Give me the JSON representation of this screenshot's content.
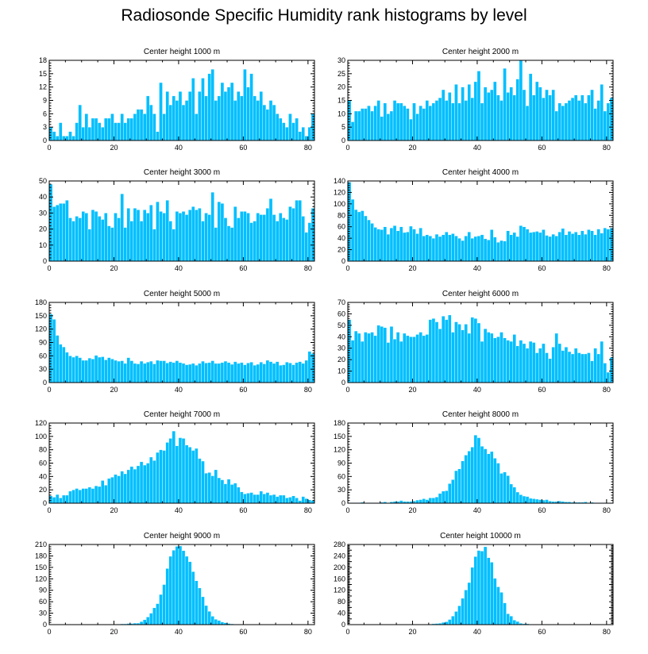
{
  "figure": {
    "title": "Radiosonde Specific Humidity rank histograms by level",
    "bar_color": "#00bfff",
    "bar_edge_color": "#ffffff"
  },
  "chart_data": [
    {
      "type": "bar",
      "title": "Center height 1000 m",
      "xlim": [
        0,
        82
      ],
      "ylim": [
        0,
        18
      ],
      "xticks": [
        0,
        20,
        40,
        60,
        80
      ],
      "yticks": [
        0,
        3,
        6,
        9,
        12,
        15,
        18
      ],
      "categories_start": 0,
      "values": [
        3,
        2,
        1,
        4,
        1,
        1,
        2,
        1,
        4,
        8,
        3,
        6,
        3,
        5,
        5,
        4,
        3,
        5,
        5,
        6,
        4,
        4,
        6,
        4,
        5,
        5,
        6,
        7,
        7,
        6,
        10,
        8,
        6,
        2,
        13,
        6,
        11,
        8,
        10,
        9,
        11,
        8,
        9,
        11,
        14,
        6,
        11,
        14,
        10,
        15,
        16,
        9,
        10,
        13,
        11,
        12,
        13,
        9,
        11,
        10,
        16,
        12,
        15,
        10,
        9,
        11,
        8,
        7,
        9,
        8,
        6,
        5,
        4,
        3,
        6,
        4,
        5,
        2,
        3,
        1,
        3,
        6
      ]
    },
    {
      "type": "bar",
      "title": "Center height 2000 m",
      "xlim": [
        0,
        82
      ],
      "ylim": [
        0,
        30
      ],
      "xticks": [
        0,
        20,
        40,
        60,
        80
      ],
      "yticks": [
        0,
        5,
        10,
        15,
        20,
        25,
        30
      ],
      "categories_start": 0,
      "values": [
        15,
        7,
        11,
        11,
        12,
        12,
        13,
        11,
        13,
        15,
        9,
        14,
        10,
        11,
        15,
        14,
        14,
        13,
        12,
        8,
        14,
        10,
        13,
        12,
        15,
        13,
        14,
        15,
        16,
        19,
        15,
        18,
        14,
        21,
        14,
        20,
        15,
        21,
        16,
        22,
        26,
        14,
        20,
        18,
        19,
        22,
        17,
        15,
        27,
        18,
        20,
        17,
        23,
        30,
        19,
        13,
        25,
        17,
        22,
        20,
        16,
        19,
        17,
        19,
        11,
        14,
        13,
        14,
        15,
        16,
        17,
        15,
        17,
        14,
        17,
        19,
        12,
        15,
        21,
        11,
        14,
        16
      ]
    },
    {
      "type": "bar",
      "title": "Center height 3000 m",
      "xlim": [
        0,
        82
      ],
      "ylim": [
        0,
        50
      ],
      "xticks": [
        0,
        20,
        40,
        60,
        80
      ],
      "yticks": [
        0,
        10,
        20,
        30,
        40,
        50
      ],
      "categories_start": 0,
      "values": [
        48,
        34,
        35,
        36,
        36,
        38,
        27,
        25,
        28,
        27,
        31,
        30,
        20,
        32,
        31,
        28,
        26,
        30,
        22,
        21,
        30,
        27,
        42,
        21,
        33,
        25,
        33,
        32,
        25,
        32,
        30,
        35,
        20,
        37,
        31,
        30,
        38,
        25,
        20,
        31,
        30,
        31,
        29,
        32,
        34,
        32,
        33,
        25,
        30,
        29,
        43,
        21,
        37,
        36,
        27,
        22,
        21,
        34,
        27,
        31,
        31,
        30,
        24,
        25,
        30,
        29,
        29,
        33,
        39,
        29,
        25,
        30,
        27,
        26,
        34,
        33,
        38,
        38,
        28,
        18,
        24,
        33
      ]
    },
    {
      "type": "bar",
      "title": "Center height 4000 m",
      "xlim": [
        0,
        82
      ],
      "ylim": [
        0,
        140
      ],
      "xticks": [
        0,
        20,
        40,
        60,
        80
      ],
      "yticks": [
        0,
        20,
        40,
        60,
        80,
        100,
        120,
        140
      ],
      "categories_start": 0,
      "values": [
        138,
        108,
        90,
        86,
        88,
        79,
        72,
        66,
        59,
        56,
        55,
        60,
        47,
        58,
        62,
        53,
        60,
        50,
        51,
        61,
        56,
        48,
        58,
        44,
        46,
        44,
        40,
        47,
        43,
        46,
        51,
        46,
        48,
        44,
        40,
        36,
        44,
        51,
        40,
        43,
        44,
        46,
        39,
        37,
        55,
        42,
        33,
        36,
        35,
        53,
        46,
        50,
        43,
        62,
        60,
        56,
        50,
        51,
        52,
        50,
        55,
        45,
        43,
        47,
        44,
        51,
        57,
        46,
        52,
        48,
        51,
        46,
        53,
        47,
        55,
        53,
        46,
        56,
        49,
        58,
        56,
        58
      ]
    },
    {
      "type": "bar",
      "title": "Center height 5000 m",
      "xlim": [
        0,
        82
      ],
      "ylim": [
        0,
        180
      ],
      "xticks": [
        0,
        20,
        40,
        60,
        80
      ],
      "yticks": [
        0,
        30,
        60,
        90,
        120,
        150,
        180
      ],
      "categories_start": 0,
      "values": [
        154,
        142,
        106,
        86,
        80,
        68,
        60,
        57,
        60,
        56,
        50,
        50,
        55,
        53,
        61,
        57,
        58,
        51,
        56,
        53,
        50,
        48,
        49,
        43,
        56,
        49,
        43,
        42,
        48,
        43,
        46,
        48,
        42,
        50,
        49,
        49,
        44,
        47,
        45,
        49,
        45,
        43,
        40,
        41,
        43,
        39,
        43,
        48,
        44,
        45,
        49,
        43,
        43,
        45,
        48,
        45,
        41,
        47,
        43,
        45,
        40,
        44,
        46,
        39,
        41,
        46,
        42,
        50,
        47,
        43,
        47,
        39,
        40,
        46,
        44,
        40,
        45,
        47,
        43,
        50,
        70,
        65
      ]
    },
    {
      "type": "bar",
      "title": "Center height 6000 m",
      "xlim": [
        0,
        82
      ],
      "ylim": [
        0,
        70
      ],
      "xticks": [
        0,
        20,
        40,
        60,
        80
      ],
      "yticks": [
        0,
        10,
        20,
        30,
        40,
        50,
        60,
        70
      ],
      "categories_start": 0,
      "values": [
        55,
        37,
        45,
        43,
        36,
        44,
        43,
        44,
        41,
        50,
        49,
        48,
        35,
        49,
        38,
        44,
        36,
        43,
        41,
        40,
        40,
        42,
        44,
        41,
        42,
        55,
        56,
        53,
        47,
        58,
        55,
        59,
        44,
        53,
        51,
        46,
        51,
        43,
        57,
        56,
        52,
        36,
        47,
        44,
        43,
        39,
        40,
        44,
        39,
        37,
        36,
        42,
        32,
        37,
        34,
        30,
        36,
        35,
        26,
        30,
        34,
        26,
        21,
        31,
        43,
        34,
        28,
        31,
        27,
        25,
        30,
        26,
        25,
        25,
        26,
        19,
        30,
        25,
        36,
        17,
        9,
        22
      ]
    },
    {
      "type": "bar",
      "title": "Center height 7000 m",
      "xlim": [
        0,
        82
      ],
      "ylim": [
        0,
        120
      ],
      "xticks": [
        0,
        20,
        40,
        60,
        80
      ],
      "yticks": [
        0,
        20,
        40,
        60,
        80,
        100,
        120
      ],
      "categories_start": 0,
      "values": [
        11,
        9,
        13,
        8,
        12,
        12,
        18,
        20,
        22,
        20,
        22,
        22,
        24,
        22,
        26,
        25,
        34,
        27,
        37,
        39,
        43,
        41,
        48,
        44,
        50,
        55,
        51,
        56,
        62,
        57,
        60,
        69,
        64,
        76,
        80,
        79,
        91,
        97,
        108,
        86,
        98,
        97,
        87,
        84,
        79,
        82,
        67,
        63,
        45,
        46,
        41,
        50,
        38,
        35,
        29,
        36,
        28,
        30,
        24,
        17,
        14,
        15,
        16,
        13,
        13,
        18,
        14,
        16,
        12,
        13,
        10,
        12,
        12,
        8,
        9,
        11,
        8,
        4,
        10,
        7,
        5,
        4
      ]
    },
    {
      "type": "bar",
      "title": "Center height 8000 m",
      "xlim": [
        0,
        82
      ],
      "ylim": [
        0,
        180
      ],
      "xticks": [
        0,
        20,
        40,
        60,
        80
      ],
      "yticks": [
        0,
        30,
        60,
        90,
        120,
        150,
        180
      ],
      "categories_start": 0,
      "values": [
        1,
        1,
        1,
        1,
        2,
        1,
        1,
        1,
        1,
        1,
        2,
        3,
        1,
        3,
        4,
        4,
        6,
        4,
        4,
        4,
        5,
        7,
        8,
        10,
        8,
        12,
        12,
        14,
        22,
        27,
        28,
        44,
        53,
        73,
        77,
        95,
        108,
        117,
        126,
        153,
        147,
        128,
        122,
        111,
        116,
        101,
        90,
        67,
        70,
        62,
        43,
        36,
        25,
        19,
        16,
        15,
        11,
        10,
        9,
        8,
        7,
        8,
        5,
        4,
        4,
        5,
        4,
        3,
        3,
        2,
        2,
        2,
        2,
        3,
        1,
        2,
        1,
        1,
        1,
        1,
        1,
        1
      ]
    },
    {
      "type": "bar",
      "title": "Center height 9000 m",
      "xlim": [
        0,
        82
      ],
      "ylim": [
        0,
        210
      ],
      "xticks": [
        0,
        20,
        40,
        60,
        80
      ],
      "yticks": [
        0,
        30,
        60,
        90,
        120,
        150,
        180,
        210
      ],
      "categories_start": 0,
      "values": [
        0,
        0,
        0,
        0,
        0,
        0,
        0,
        0,
        0,
        0,
        0,
        0,
        0,
        0,
        0,
        0,
        0,
        1,
        1,
        1,
        1,
        1,
        2,
        2,
        3,
        3,
        4,
        4,
        8,
        13,
        20,
        30,
        44,
        55,
        79,
        105,
        147,
        179,
        195,
        205,
        206,
        194,
        179,
        165,
        139,
        115,
        96,
        73,
        50,
        35,
        22,
        14,
        11,
        7,
        5,
        3,
        2,
        1,
        1,
        1,
        1,
        1,
        1,
        0,
        0,
        0,
        0,
        0,
        0,
        0,
        0,
        0,
        0,
        0,
        0,
        0,
        0,
        0,
        0,
        0,
        0,
        0
      ]
    },
    {
      "type": "bar",
      "title": "Center height 10000 m",
      "xlim": [
        0,
        82
      ],
      "ylim": [
        0,
        280
      ],
      "xticks": [
        0,
        20,
        40,
        60,
        80
      ],
      "yticks": [
        0,
        20,
        40,
        60,
        80,
        100,
        120,
        140,
        160,
        180,
        200,
        220,
        240,
        260,
        280
      ],
      "ytick_labels": [
        "0",
        "",
        "40",
        "",
        "80",
        "",
        "120",
        "",
        "160",
        "",
        "200",
        "",
        "240",
        "",
        "280"
      ],
      "categories_start": 0,
      "values": [
        0,
        0,
        0,
        0,
        0,
        0,
        0,
        0,
        0,
        0,
        0,
        0,
        0,
        0,
        0,
        0,
        0,
        0,
        0,
        0,
        0,
        1,
        1,
        1,
        1,
        2,
        3,
        4,
        5,
        8,
        10,
        18,
        30,
        46,
        66,
        92,
        121,
        147,
        200,
        238,
        259,
        257,
        272,
        234,
        218,
        162,
        132,
        113,
        76,
        38,
        30,
        16,
        11,
        5,
        3,
        3,
        1,
        1,
        1,
        1,
        1,
        0,
        0,
        0,
        0,
        0,
        0,
        0,
        0,
        0,
        0,
        0,
        0,
        0,
        0,
        0,
        0,
        0,
        0,
        0,
        0,
        0
      ]
    }
  ]
}
